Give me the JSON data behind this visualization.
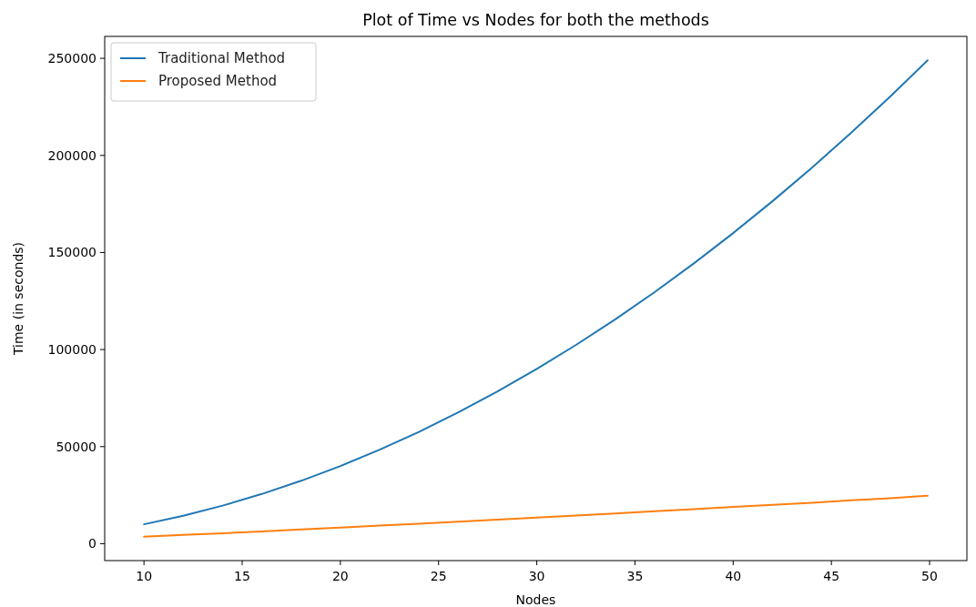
{
  "chart_data": {
    "type": "line",
    "title": "Plot of Time vs Nodes for both the methods",
    "xlabel": "Nodes",
    "ylabel": "Time (in seconds)",
    "x": [
      10,
      12,
      14,
      16,
      18,
      20,
      22,
      24,
      26,
      28,
      30,
      32,
      34,
      36,
      38,
      40,
      42,
      44,
      46,
      48,
      49.9
    ],
    "series": [
      {
        "name": "Traditional Method",
        "color": "#1f77b4",
        "values": [
          10000,
          14400,
          19600,
          25600,
          32400,
          40000,
          48400,
          57600,
          67600,
          78400,
          90000,
          102400,
          115600,
          129600,
          144400,
          160000,
          176400,
          193600,
          211600,
          230400,
          249000
        ]
      },
      {
        "name": "Proposed Method",
        "color": "#ff7f0e",
        "values": [
          3600,
          4500,
          5400,
          6300,
          7300,
          8300,
          9300,
          10300,
          11300,
          12400,
          13400,
          14500,
          15600,
          16700,
          17800,
          18900,
          20000,
          21100,
          22300,
          23400,
          24700
        ]
      }
    ],
    "xlim": [
      8.0,
      51.9
    ],
    "xticks": [
      10,
      15,
      20,
      25,
      30,
      35,
      40,
      45,
      50
    ],
    "ylim": [
      -8700,
      261300
    ],
    "yticks": [
      0,
      50000,
      100000,
      150000,
      200000,
      250000
    ],
    "grid": false,
    "legend": "top left",
    "marker": "none",
    "line_style": "solid"
  }
}
